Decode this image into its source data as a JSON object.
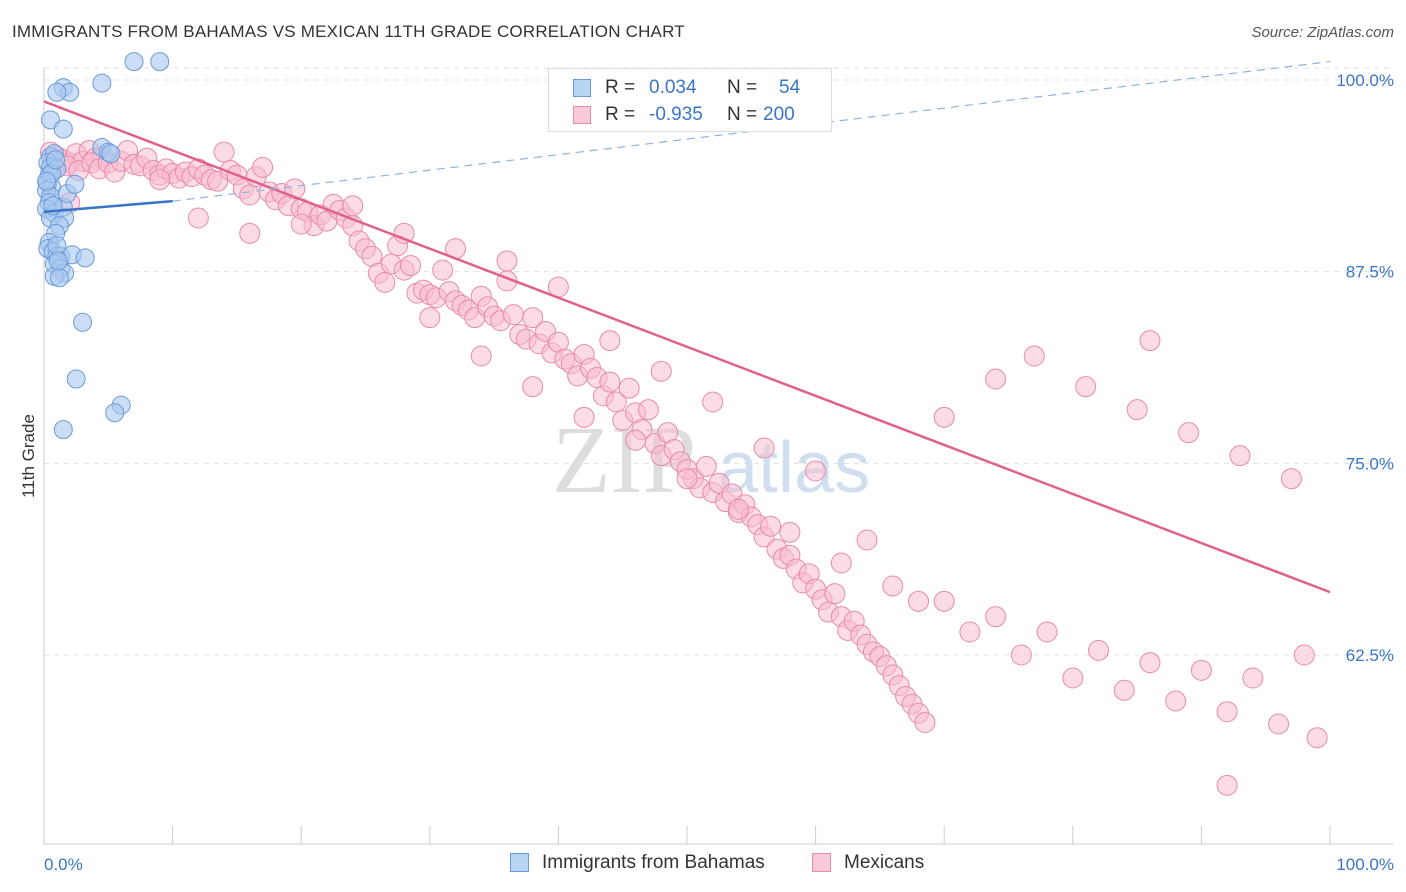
{
  "title": "IMMIGRANTS FROM BAHAMAS VS MEXICAN 11TH GRADE CORRELATION CHART",
  "source": "Source: ZipAtlas.com",
  "watermark": {
    "zip": "ZIP",
    "atlas": "atlas"
  },
  "legend": {
    "r_label": "R =",
    "n_label": "N =",
    "series1": {
      "r": "0.034",
      "n": "54"
    },
    "series2": {
      "r": "-0.935",
      "n": "200"
    }
  },
  "colors": {
    "blue_fill": "#a8c8f0",
    "blue_stroke": "#6a9bd8",
    "blue_line": "#3a75c4",
    "pink_fill": "#f7bdd0",
    "pink_stroke": "#e88aaa",
    "pink_line": "#e0608e",
    "axis_text": "#3a75c4",
    "grid": "#e0e0e0"
  },
  "chart_data": {
    "type": "scatter",
    "title": "IMMIGRANTS FROM BAHAMAS VS MEXICAN 11TH GRADE CORRELATION CHART",
    "xlabel": "",
    "ylabel": "11th Grade",
    "xlim": [
      0,
      100
    ],
    "ylim": [
      50,
      101.5
    ],
    "x_tick_labels": [
      "0.0%",
      "100.0%"
    ],
    "y_ticks": [
      62.5,
      75.0,
      87.5,
      100.0
    ],
    "y_tick_labels": [
      "62.5%",
      "75.0%",
      "87.5%",
      "100.0%"
    ],
    "series": [
      {
        "name": "Immigrants from Bahamas",
        "color": "#a8c8f0",
        "r": 0.034,
        "n": 54,
        "trend_solid": [
          [
            0,
            91.4
          ],
          [
            10,
            92.1
          ]
        ],
        "trend_dashed": [
          [
            10,
            92.1
          ],
          [
            100,
            101.2
          ]
        ],
        "points": [
          [
            7,
            101.2
          ],
          [
            9,
            101.2
          ],
          [
            1.5,
            99.5
          ],
          [
            2,
            99.2
          ],
          [
            1,
            99.2
          ],
          [
            4.5,
            99.8
          ],
          [
            0.5,
            97.4
          ],
          [
            1.5,
            96.8
          ],
          [
            4.5,
            95.6
          ],
          [
            5,
            95.3
          ],
          [
            0.5,
            95
          ],
          [
            0.8,
            95.2
          ],
          [
            0.3,
            94.6
          ],
          [
            0.5,
            94.3
          ],
          [
            1,
            94.2
          ],
          [
            0.4,
            93.8
          ],
          [
            0.3,
            93.3
          ],
          [
            0.6,
            93.0
          ],
          [
            0.2,
            92.8
          ],
          [
            0.5,
            92.4
          ],
          [
            0.4,
            92.0
          ],
          [
            0.2,
            91.6
          ],
          [
            0.8,
            91.3
          ],
          [
            0.5,
            91.0
          ],
          [
            1.5,
            91.7
          ],
          [
            1.6,
            91.0
          ],
          [
            1.2,
            90.5
          ],
          [
            0.9,
            90.0
          ],
          [
            0.4,
            89.4
          ],
          [
            0.3,
            89.0
          ],
          [
            0.7,
            88.8
          ],
          [
            1,
            88.5
          ],
          [
            1.3,
            88.5
          ],
          [
            2.2,
            88.6
          ],
          [
            3.2,
            88.4
          ],
          [
            0.8,
            88.0
          ],
          [
            1.3,
            87.7
          ],
          [
            1.6,
            87.4
          ],
          [
            0.8,
            87.2
          ],
          [
            1.2,
            87.1
          ],
          [
            3,
            84.2
          ],
          [
            2.5,
            80.5
          ],
          [
            6,
            78.8
          ],
          [
            5.5,
            78.3
          ],
          [
            1.5,
            77.2
          ],
          [
            0.6,
            93.9
          ],
          [
            0.9,
            94.8
          ],
          [
            5.2,
            95.2
          ],
          [
            0.2,
            93.4
          ],
          [
            1.8,
            92.6
          ],
          [
            1.0,
            89.2
          ],
          [
            2.4,
            93.2
          ],
          [
            0.7,
            91.8
          ],
          [
            1.1,
            88.2
          ]
        ]
      },
      {
        "name": "Mexicans",
        "color": "#f7bdd0",
        "r": -0.935,
        "n": 200,
        "trend": [
          [
            0,
            98.6
          ],
          [
            100,
            66.6
          ]
        ],
        "points": [
          [
            0.5,
            95.3
          ],
          [
            1,
            95.0
          ],
          [
            1.5,
            94.8
          ],
          [
            2,
            94.6
          ],
          [
            2.5,
            95.2
          ],
          [
            3,
            94.7
          ],
          [
            3.5,
            95.4
          ],
          [
            4,
            94.9
          ],
          [
            4.5,
            95.0
          ],
          [
            0.8,
            94.3
          ],
          [
            1.8,
            94.4
          ],
          [
            2.7,
            94.1
          ],
          [
            3.7,
            94.6
          ],
          [
            4.3,
            94.2
          ],
          [
            5,
            94.6
          ],
          [
            5.5,
            94.0
          ],
          [
            6,
            94.7
          ],
          [
            6.5,
            95.4
          ],
          [
            7,
            94.5
          ],
          [
            7.5,
            94.4
          ],
          [
            8,
            94.9
          ],
          [
            8.5,
            94.1
          ],
          [
            9,
            93.8
          ],
          [
            9.5,
            94.2
          ],
          [
            10,
            93.9
          ],
          [
            10.5,
            93.6
          ],
          [
            11,
            94.0
          ],
          [
            11.5,
            93.7
          ],
          [
            12,
            94.2
          ],
          [
            12.5,
            93.8
          ],
          [
            13,
            93.5
          ],
          [
            13.5,
            93.4
          ],
          [
            14,
            95.3
          ],
          [
            14.5,
            94.1
          ],
          [
            15,
            93.8
          ],
          [
            15.5,
            92.9
          ],
          [
            16,
            92.5
          ],
          [
            16.5,
            93.7
          ],
          [
            17,
            94.3
          ],
          [
            17.5,
            92.7
          ],
          [
            18,
            92.2
          ],
          [
            18.5,
            92.6
          ],
          [
            19,
            91.8
          ],
          [
            19.5,
            92.9
          ],
          [
            20,
            91.6
          ],
          [
            20.5,
            91.4
          ],
          [
            21,
            90.5
          ],
          [
            21.5,
            91.2
          ],
          [
            22,
            90.8
          ],
          [
            22.5,
            91.9
          ],
          [
            23,
            91.5
          ],
          [
            23.5,
            91.0
          ],
          [
            24,
            90.5
          ],
          [
            24.5,
            89.5
          ],
          [
            25,
            89.0
          ],
          [
            25.5,
            88.5
          ],
          [
            26,
            87.4
          ],
          [
            26.5,
            86.8
          ],
          [
            27,
            88.0
          ],
          [
            27.5,
            89.2
          ],
          [
            28,
            87.6
          ],
          [
            28.5,
            87.9
          ],
          [
            29,
            86.1
          ],
          [
            29.5,
            86.3
          ],
          [
            30,
            86.0
          ],
          [
            30.5,
            85.8
          ],
          [
            31,
            87.6
          ],
          [
            31.5,
            86.2
          ],
          [
            32,
            85.6
          ],
          [
            32.5,
            85.3
          ],
          [
            33,
            85.0
          ],
          [
            33.5,
            84.5
          ],
          [
            34,
            85.9
          ],
          [
            34.5,
            85.2
          ],
          [
            35,
            84.6
          ],
          [
            35.5,
            84.3
          ],
          [
            36,
            86.9
          ],
          [
            36.5,
            84.7
          ],
          [
            37,
            83.4
          ],
          [
            37.5,
            83.1
          ],
          [
            38,
            84.5
          ],
          [
            38.5,
            82.8
          ],
          [
            39,
            83.6
          ],
          [
            39.5,
            82.2
          ],
          [
            40,
            82.9
          ],
          [
            40.5,
            81.8
          ],
          [
            41,
            81.5
          ],
          [
            41.5,
            80.7
          ],
          [
            42,
            82.1
          ],
          [
            42.5,
            81.2
          ],
          [
            43,
            80.6
          ],
          [
            43.5,
            79.4
          ],
          [
            44,
            80.3
          ],
          [
            44.5,
            79.0
          ],
          [
            45,
            77.8
          ],
          [
            45.5,
            79.9
          ],
          [
            46,
            78.3
          ],
          [
            46.5,
            77.2
          ],
          [
            47,
            78.5
          ],
          [
            47.5,
            76.3
          ],
          [
            48,
            75.5
          ],
          [
            48.5,
            77.0
          ],
          [
            49,
            75.9
          ],
          [
            49.5,
            75.1
          ],
          [
            50,
            74.6
          ],
          [
            50.5,
            74.0
          ],
          [
            51,
            73.4
          ],
          [
            51.5,
            74.8
          ],
          [
            52,
            73.1
          ],
          [
            52.5,
            73.7
          ],
          [
            53,
            72.5
          ],
          [
            53.5,
            73.0
          ],
          [
            54,
            71.8
          ],
          [
            54.5,
            72.3
          ],
          [
            55,
            71.5
          ],
          [
            55.5,
            71.0
          ],
          [
            56,
            70.2
          ],
          [
            56.5,
            70.9
          ],
          [
            57,
            69.4
          ],
          [
            57.5,
            68.8
          ],
          [
            58,
            69.0
          ],
          [
            58.5,
            68.1
          ],
          [
            59,
            67.2
          ],
          [
            59.5,
            67.8
          ],
          [
            60,
            66.8
          ],
          [
            60.5,
            66.1
          ],
          [
            61,
            65.3
          ],
          [
            61.5,
            66.5
          ],
          [
            62,
            65.0
          ],
          [
            62.5,
            64.1
          ],
          [
            63,
            64.7
          ],
          [
            63.5,
            63.8
          ],
          [
            64,
            63.2
          ],
          [
            64.5,
            62.7
          ],
          [
            65,
            62.4
          ],
          [
            65.5,
            61.8
          ],
          [
            66,
            61.2
          ],
          [
            66.5,
            60.5
          ],
          [
            67,
            59.8
          ],
          [
            67.5,
            59.3
          ],
          [
            68,
            58.7
          ],
          [
            68.5,
            58.1
          ],
          [
            2,
            92.0
          ],
          [
            9,
            93.5
          ],
          [
            12,
            91.0
          ],
          [
            16,
            90.0
          ],
          [
            20,
            90.6
          ],
          [
            24,
            91.8
          ],
          [
            28,
            90.0
          ],
          [
            32,
            89.0
          ],
          [
            36,
            88.2
          ],
          [
            40,
            86.5
          ],
          [
            44,
            83.0
          ],
          [
            48,
            81.0
          ],
          [
            52,
            79.0
          ],
          [
            56,
            76.0
          ],
          [
            60,
            74.5
          ],
          [
            64,
            70.0
          ],
          [
            68,
            66.0
          ],
          [
            72,
            64.0
          ],
          [
            76,
            62.5
          ],
          [
            80,
            61.0
          ],
          [
            84,
            60.2
          ],
          [
            88,
            59.5
          ],
          [
            92,
            58.8
          ],
          [
            96,
            58.0
          ],
          [
            99,
            57.1
          ],
          [
            92,
            54.0
          ],
          [
            30,
            84.5
          ],
          [
            34,
            82.0
          ],
          [
            38,
            80.0
          ],
          [
            42,
            78.0
          ],
          [
            46,
            76.5
          ],
          [
            50,
            74.0
          ],
          [
            54,
            72.0
          ],
          [
            58,
            70.5
          ],
          [
            62,
            68.5
          ],
          [
            66,
            67.0
          ],
          [
            70,
            66.0
          ],
          [
            74,
            65.0
          ],
          [
            78,
            64.0
          ],
          [
            82,
            62.8
          ],
          [
            86,
            62.0
          ],
          [
            90,
            61.5
          ],
          [
            94,
            61.0
          ],
          [
            98,
            62.5
          ],
          [
            86,
            83.0
          ],
          [
            77,
            82.0
          ],
          [
            81,
            80.0
          ],
          [
            85,
            78.5
          ],
          [
            89,
            77.0
          ],
          [
            93,
            75.5
          ],
          [
            97,
            74.0
          ],
          [
            74,
            80.5
          ],
          [
            70,
            78.0
          ]
        ]
      }
    ]
  },
  "bottom_legend": [
    {
      "label": "Immigrants from Bahamas",
      "color": "#a8c8f0"
    },
    {
      "label": "Mexicans",
      "color": "#f7bdd0"
    }
  ]
}
